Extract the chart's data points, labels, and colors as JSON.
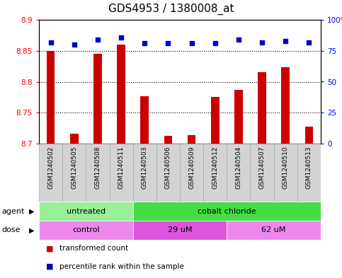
{
  "title": "GDS4953 / 1380008_at",
  "samples": [
    "GSM1240502",
    "GSM1240505",
    "GSM1240508",
    "GSM1240511",
    "GSM1240503",
    "GSM1240506",
    "GSM1240509",
    "GSM1240512",
    "GSM1240504",
    "GSM1240507",
    "GSM1240510",
    "GSM1240513"
  ],
  "transformed_count": [
    8.85,
    8.716,
    8.845,
    8.86,
    8.777,
    8.713,
    8.714,
    8.775,
    8.787,
    8.815,
    8.823,
    8.727
  ],
  "percentile_rank": [
    82,
    80,
    84,
    86,
    81,
    81,
    81,
    81,
    84,
    82,
    83,
    82
  ],
  "ylim_left": [
    8.7,
    8.9
  ],
  "yticks_left": [
    8.7,
    8.75,
    8.8,
    8.85,
    8.9
  ],
  "ylim_right": [
    0,
    100
  ],
  "yticks_right": [
    0,
    25,
    50,
    75,
    100
  ],
  "bar_color": "#cc0000",
  "dot_color": "#0000cc",
  "agent_groups": [
    {
      "label": "untreated",
      "start": 0,
      "end": 4,
      "color": "#99ee99"
    },
    {
      "label": "cobalt chloride",
      "start": 4,
      "end": 12,
      "color": "#44dd44"
    }
  ],
  "dose_groups": [
    {
      "label": "control",
      "start": 0,
      "end": 4,
      "color": "#ee88ee"
    },
    {
      "label": "29 uM",
      "start": 4,
      "end": 8,
      "color": "#dd55dd"
    },
    {
      "label": "62 uM",
      "start": 8,
      "end": 12,
      "color": "#ee88ee"
    }
  ],
  "agent_label": "agent",
  "dose_label": "dose",
  "legend_bar_label": "transformed count",
  "legend_dot_label": "percentile rank within the sample",
  "bar_width": 0.35,
  "title_fontsize": 11,
  "tick_fontsize": 7.5,
  "label_fontsize": 8,
  "bar_bottom": 8.7,
  "sample_box_color": "#d3d3d3",
  "sample_box_edge": "#aaaaaa"
}
